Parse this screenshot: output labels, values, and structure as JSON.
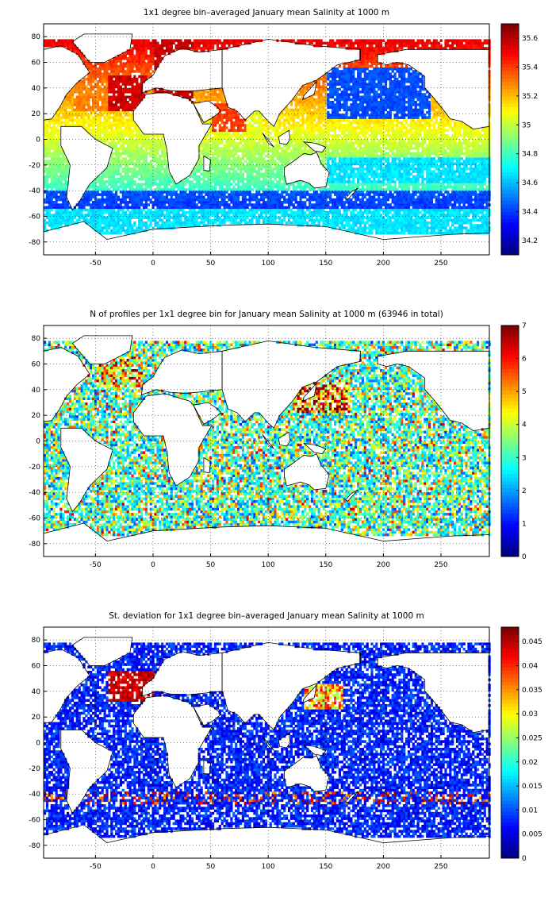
{
  "panels": [
    {
      "id": "mean",
      "title": "1x1 degree bin–averaged January mean Salinity at 1000 m",
      "xticks": [
        "-50",
        "0",
        "50",
        "100",
        "150",
        "200",
        "250"
      ],
      "yticks": [
        "80",
        "60",
        "40",
        "20",
        "0",
        "-20",
        "-40",
        "-60",
        "-80"
      ],
      "colorbar": {
        "min": 34.1,
        "max": 35.7,
        "ticks": [
          "34.2",
          "34.4",
          "34.6",
          "34.8",
          "35",
          "35.2",
          "35.4",
          "35.6"
        ]
      }
    },
    {
      "id": "count",
      "title": "N of profiles per 1x1 degree bin for January mean Salinity at 1000 m (63946 in total)",
      "xticks": [
        "-50",
        "0",
        "50",
        "100",
        "150",
        "200",
        "250"
      ],
      "yticks": [
        "80",
        "60",
        "40",
        "20",
        "0",
        "-20",
        "-40",
        "-60",
        "-80"
      ],
      "colorbar": {
        "min": 0,
        "max": 7,
        "ticks": [
          "0",
          "1",
          "2",
          "3",
          "4",
          "5",
          "6",
          "7"
        ]
      }
    },
    {
      "id": "std",
      "title": "St. deviation for 1x1 degree bin–averaged January mean Salinity at 1000 m",
      "xticks": [
        "-50",
        "0",
        "50",
        "100",
        "150",
        "200",
        "250"
      ],
      "yticks": [
        "80",
        "60",
        "40",
        "20",
        "0",
        "-20",
        "-40",
        "-60",
        "-80"
      ],
      "colorbar": {
        "min": 0,
        "max": 0.048,
        "ticks": [
          "0",
          "0.005",
          "0.01",
          "0.015",
          "0.02",
          "0.025",
          "0.03",
          "0.035",
          "0.04",
          "0.045"
        ]
      }
    }
  ],
  "colormap": "jet",
  "axes": {
    "xlim": [
      -95,
      292
    ],
    "ylim": [
      -90,
      90
    ],
    "grid": true,
    "grid_style": "dotted"
  }
}
